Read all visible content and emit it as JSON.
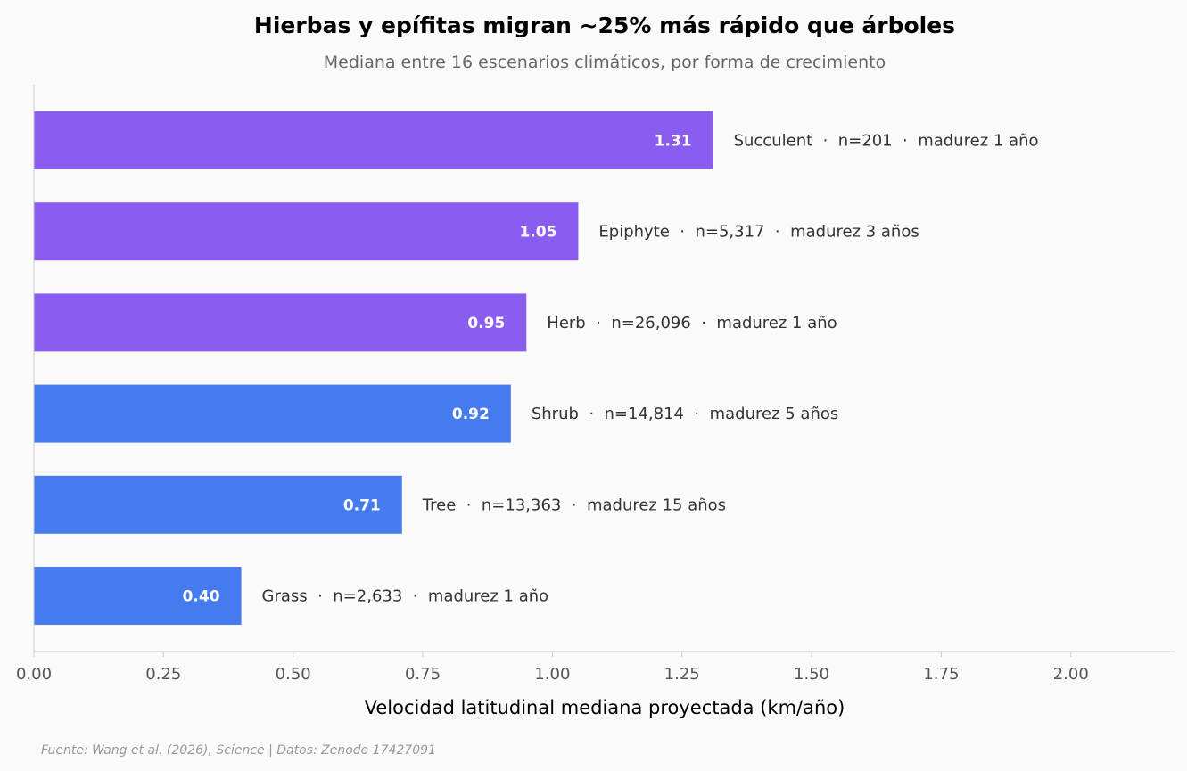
{
  "chart_data": {
    "type": "bar",
    "orientation": "horizontal",
    "title": "Hierbas y epífitas migran ~25% más rápido que árboles",
    "subtitle": "Mediana entre 16 escenarios climáticos, por forma de crecimiento",
    "xlabel": "Velocidad latitudinal mediana proyectada (km/año)",
    "ylabel": "",
    "xlim": [
      0,
      2.2
    ],
    "xticks": [
      0,
      0.25,
      0.5,
      0.75,
      1.0,
      1.25,
      1.5,
      1.75,
      2.0
    ],
    "xtick_labels": [
      "0.00",
      "0.25",
      "0.50",
      "0.75",
      "1.00",
      "1.25",
      "1.50",
      "1.75",
      "2.00"
    ],
    "grid": false,
    "categories": [
      "Succulent",
      "Epiphyte",
      "Herb",
      "Shrub",
      "Tree",
      "Grass"
    ],
    "values": [
      1.31,
      1.05,
      0.95,
      0.92,
      0.71,
      0.4
    ],
    "value_labels": [
      "1.31",
      "1.05",
      "0.95",
      "0.92",
      "0.71",
      "0.40"
    ],
    "annotations": [
      "Succulent  ·  n=201  ·  madurez 1 año",
      "Epiphyte  ·  n=5,317  ·  madurez 3 años",
      "Herb  ·  n=26,096  ·  madurez 1 año",
      "Shrub  ·  n=14,814  ·  madurez 5 años",
      "Tree  ·  n=13,363  ·  madurez 15 años",
      "Grass  ·  n=2,633  ·  madurez 1 año"
    ],
    "bar_colors": [
      "#8b5cf0",
      "#8b5cf0",
      "#8b5cf0",
      "#467bef",
      "#467bef",
      "#467bef"
    ],
    "source": "Fuente: Wang et al. (2026), Science | Datos: Zenodo 17427091"
  },
  "colors": {
    "background": "#fafafa",
    "highlight": "#8b5cf0",
    "base": "#467bef",
    "axis": "#cccccc"
  }
}
